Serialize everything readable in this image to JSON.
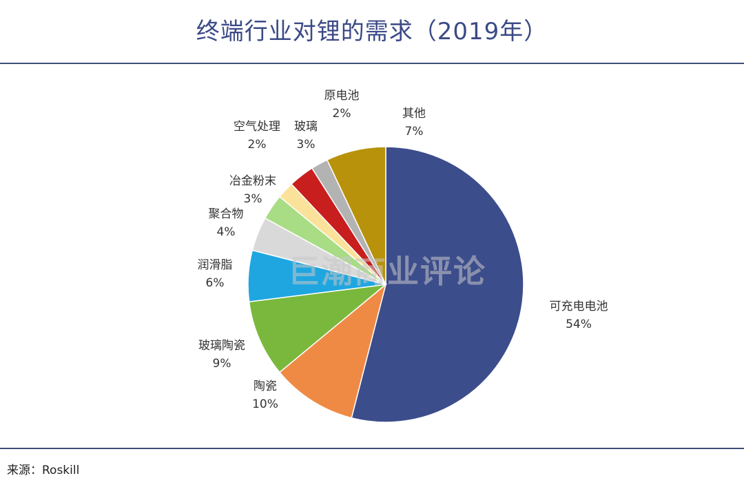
{
  "header": {
    "title": "终端行业对锂的需求（2019年）"
  },
  "footer": {
    "source": "来源：Roskill"
  },
  "watermark": "巨潮商业评论",
  "chart_data": {
    "type": "pie",
    "title": "终端行业对锂的需求（2019年）",
    "slices": [
      {
        "label": "可充电电池",
        "value": 54,
        "display": "54%",
        "color": "#3c4d8c"
      },
      {
        "label": "陶瓷",
        "value": 10,
        "display": "10%",
        "color": "#ef8a45"
      },
      {
        "label": "玻璃陶瓷",
        "value": 9,
        "display": "9%",
        "color": "#7ab83d"
      },
      {
        "label": "润滑脂",
        "value": 6,
        "display": "6%",
        "color": "#1fa6e0"
      },
      {
        "label": "聚合物",
        "value": 4,
        "display": "4%",
        "color": "#d9d9d9"
      },
      {
        "label": "冶金粉末",
        "value": 3,
        "display": "3%",
        "color": "#a8dc85"
      },
      {
        "label": "空气处理",
        "value": 2,
        "display": "2%",
        "color": "#fbe29a"
      },
      {
        "label": "玻璃",
        "value": 3,
        "display": "3%",
        "color": "#c81e1e"
      },
      {
        "label": "原电池",
        "value": 2,
        "display": "2%",
        "color": "#b3b3b3"
      },
      {
        "label": "其他",
        "value": 7,
        "display": "7%",
        "color": "#b8920a"
      }
    ]
  }
}
